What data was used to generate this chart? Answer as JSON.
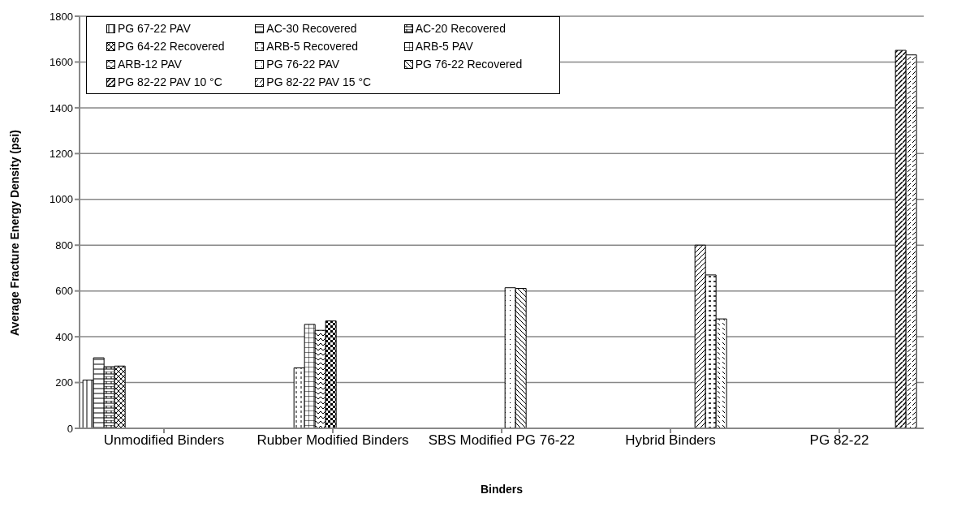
{
  "chart_data": {
    "type": "bar",
    "xlabel": "Binders",
    "ylabel": "Average Fracture Energy Density (psi)",
    "categories": [
      "Unmodified Binders",
      "Rubber Modified Binders",
      "SBS Modified PG 76-22",
      "Hybrid Binders",
      "PG 82-22"
    ],
    "series": [
      {
        "name": "PG 67-22 PAV",
        "color": "#000000",
        "values": [
          211,
          null,
          null,
          null,
          null
        ]
      },
      {
        "name": "AC-30 Recovered",
        "color": "#000000",
        "values": [
          308,
          null,
          null,
          null,
          null
        ]
      },
      {
        "name": "AC-20 Recovered",
        "color": "#000000",
        "values": [
          269,
          null,
          null,
          null,
          null
        ]
      },
      {
        "name": "PG 64-22 Recovered",
        "color": "#000000",
        "values": [
          272,
          null,
          null,
          null,
          null
        ]
      },
      {
        "name": "ARB-5 Recovered",
        "color": "#000000",
        "values": [
          null,
          264,
          null,
          null,
          null
        ]
      },
      {
        "name": "ARB-5 PAV",
        "color": "#000000",
        "values": [
          null,
          454,
          null,
          null,
          null
        ]
      },
      {
        "name": "ARB-12 PAV",
        "color": "#000000",
        "values": [
          null,
          428,
          null,
          null,
          null
        ]
      },
      {
        "color": "#000000",
        "values": [
          null,
          469,
          null,
          null,
          null
        ]
      },
      {
        "name": "PG 76-22 PAV",
        "color": "#000000",
        "values": [
          null,
          null,
          614,
          null,
          null
        ]
      },
      {
        "name": "PG 76-22 Recovered",
        "color": "#000000",
        "values": [
          null,
          null,
          611,
          null,
          null
        ]
      },
      {
        "color": "#000000",
        "values": [
          null,
          null,
          null,
          800,
          null
        ]
      },
      {
        "color": "#000000",
        "values": [
          null,
          null,
          null,
          670,
          null
        ]
      },
      {
        "color": "#000000",
        "values": [
          null,
          null,
          null,
          478,
          null
        ]
      },
      {
        "name": "PG 82-22 PAV 10 °C",
        "color": "#000000",
        "values": [
          null,
          null,
          null,
          null,
          1651
        ]
      },
      {
        "name": "PG 82-22 PAV 15 °C",
        "color": "#000000",
        "values": [
          null,
          null,
          null,
          null,
          1631
        ]
      }
    ],
    "ylim": [
      0,
      1800
    ],
    "yticks": [
      0,
      200,
      400,
      600,
      800,
      1000,
      1200,
      1400,
      1600,
      1800
    ],
    "grid": "y",
    "legend": "top left"
  }
}
